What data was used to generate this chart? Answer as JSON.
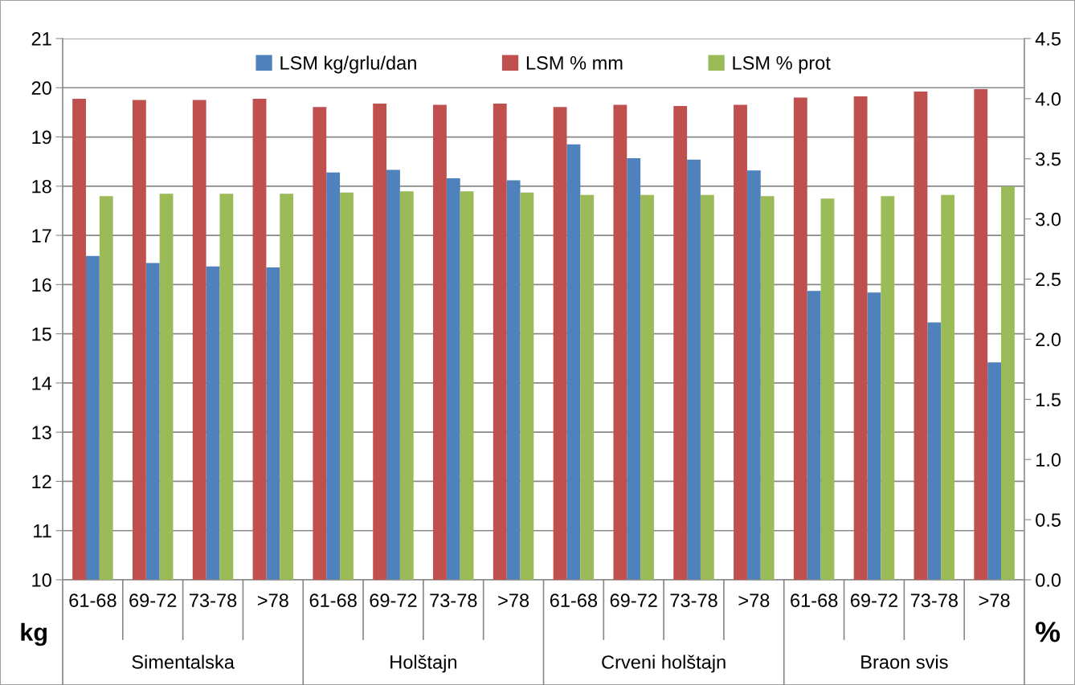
{
  "chart_data": {
    "type": "bar",
    "categories": [
      "61-68",
      "69-72",
      "73-78",
      ">78",
      "61-68",
      "69-72",
      "73-78",
      ">78",
      "61-68",
      "69-72",
      "73-78",
      ">78",
      "61-68",
      "69-72",
      "73-78",
      ">78"
    ],
    "annotations": [
      "Simentalska",
      "Holštajn",
      "Crveni holštajn",
      "Braon svis"
    ],
    "ylabel": "kg",
    "y2label": "%",
    "series": [
      {
        "name": "LSM kg/grlu/dan",
        "color": "#4f81bd",
        "values": [
          16.58,
          16.44,
          16.37,
          16.35,
          18.28,
          18.33,
          18.16,
          18.12,
          18.85,
          18.57,
          18.54,
          18.32,
          15.87,
          15.84,
          15.23,
          14.42
        ]
      },
      {
        "name": "LSM % mm",
        "color": "#c0504d",
        "axis": "y2",
        "values": [
          4.0,
          3.99,
          3.99,
          4.0,
          3.93,
          3.96,
          3.95,
          3.96,
          3.93,
          3.95,
          3.94,
          3.95,
          4.01,
          4.02,
          4.06,
          4.08
        ]
      },
      {
        "name": "LSM % prot",
        "color": "#9bbb59",
        "axis": "y2",
        "values": [
          3.19,
          3.21,
          3.21,
          3.21,
          3.22,
          3.23,
          3.23,
          3.22,
          3.2,
          3.2,
          3.2,
          3.19,
          3.17,
          3.19,
          3.2,
          3.27
        ]
      }
    ],
    "ylim": [
      10,
      21
    ],
    "yticks": [
      10,
      11,
      12,
      13,
      14,
      15,
      16,
      17,
      18,
      19,
      20,
      21
    ],
    "y2lim": [
      0,
      4.5
    ],
    "y2ticks": [
      {
        "value": 0,
        "label": "0.0"
      },
      0.5,
      {
        "value": 1,
        "label": "1.0"
      },
      1.5,
      {
        "value": 2,
        "label": "2.0"
      },
      2.5,
      {
        "value": 3,
        "label": "3.0"
      },
      3.5,
      {
        "value": 4,
        "label": "4.0"
      },
      4.5
    ],
    "grid": "y",
    "legend": "top"
  }
}
